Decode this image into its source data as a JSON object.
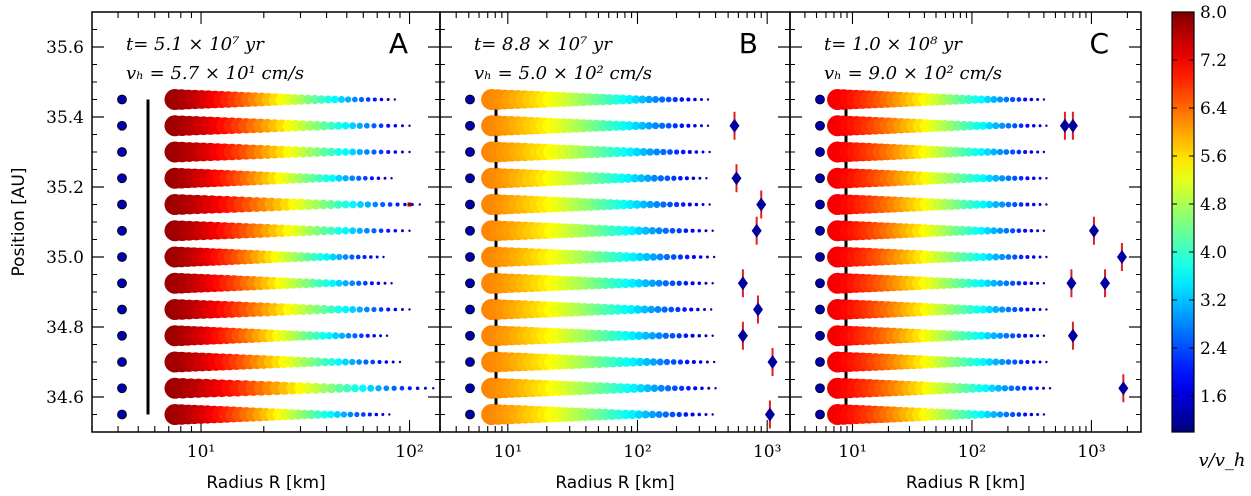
{
  "chart_data": {
    "type": "scatter",
    "ylabel": "Position [AU]",
    "ylim": [
      34.5,
      35.7
    ],
    "yticks": [
      34.6,
      34.8,
      35.0,
      35.2,
      35.4,
      35.6
    ],
    "ytick_labels": [
      "34.6",
      "34.8",
      "35.0",
      "35.2",
      "35.4",
      "35.6"
    ],
    "rows": [
      34.55,
      34.625,
      34.7,
      34.775,
      34.85,
      34.925,
      35.0,
      35.075,
      35.15,
      35.225,
      35.3,
      35.375,
      35.45
    ],
    "colorbar": {
      "label": "v/v_h",
      "min": 1.0,
      "max": 8.0,
      "ticks": [
        1.6,
        2.4,
        3.2,
        4.0,
        4.8,
        5.6,
        6.4,
        7.2,
        8.0
      ],
      "tick_labels": [
        "1.6",
        "2.4",
        "3.2",
        "4.0",
        "4.8",
        "5.6",
        "6.4",
        "7.2",
        "8.0"
      ],
      "colormap": "jet"
    },
    "panels": [
      {
        "letter": "A",
        "t_label": "t= 5.1 × 10⁷ yr",
        "vh_label": "vₕ = 5.7 × 10¹ cm/s",
        "xlabel": "Radius R [km]",
        "xscale": "log",
        "xlim": [
          3,
          140
        ],
        "xticks": [
          10,
          100
        ],
        "xtick_labels": [
          "10¹",
          "10²"
        ],
        "max_radius_km": [
          80,
          130,
          90,
          78,
          100,
          82,
          75,
          100,
          112,
          82,
          100,
          100,
          85
        ],
        "big_body_radius_km": [
          null,
          null,
          null,
          null,
          null,
          null,
          null,
          null,
          100,
          null,
          null,
          null,
          null
        ],
        "big_body_color_value": 7.8,
        "start_color_value": 7.8
      },
      {
        "letter": "B",
        "t_label": "t= 8.8 × 10⁷ yr",
        "vh_label": "vₕ = 5.0 × 10² cm/s",
        "xlabel": "Radius R [km]",
        "xscale": "log",
        "xlim": [
          3,
          1500
        ],
        "xticks": [
          10,
          100,
          1000
        ],
        "xtick_labels": [
          "10¹",
          "10²",
          "10³"
        ],
        "max_radius_km": [
          380,
          400,
          390,
          380,
          370,
          380,
          390,
          380,
          360,
          340,
          360,
          350,
          350
        ],
        "big_body_radius_km": [
          1050,
          1100,
          650,
          850,
          650,
          null,
          null,
          830,
          900,
          580,
          null,
          560,
          null
        ],
        "big_body_y": [
          34.55,
          34.7,
          34.775,
          34.85,
          34.925,
          null,
          null,
          35.075,
          35.15,
          35.225,
          null,
          35.375,
          null
        ],
        "big_body_color_value": 1.2,
        "start_color_value": 6.2
      },
      {
        "letter": "C",
        "t_label": "t= 1.0 × 10⁸ yr",
        "vh_label": "vₕ = 9.0 × 10² cm/s",
        "xlabel": "Radius R [km]",
        "xscale": "log",
        "xlim": [
          3,
          2600
        ],
        "xticks": [
          10,
          100,
          1000
        ],
        "xtick_labels": [
          "10¹",
          "10²",
          "10³"
        ],
        "max_radius_km": [
          400,
          450,
          420,
          400,
          420,
          400,
          420,
          400,
          420,
          420,
          400,
          420,
          400
        ],
        "big_body_radius_km": [
          1850,
          null,
          null,
          700,
          null,
          680,
          1300,
          1800,
          1050,
          null,
          null,
          700,
          600
        ],
        "big_body_y": [
          34.625,
          null,
          null,
          34.775,
          null,
          34.925,
          34.925,
          35.0,
          35.075,
          null,
          null,
          35.375,
          35.375
        ],
        "big_body_color_value": 1.2,
        "start_color_value": 7.2
      }
    ]
  }
}
